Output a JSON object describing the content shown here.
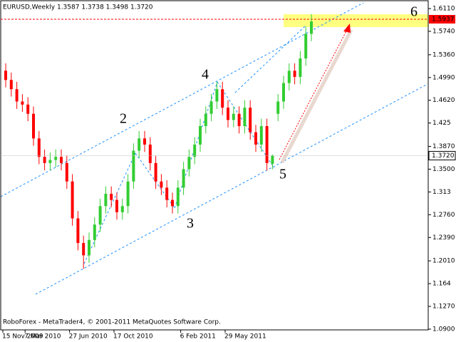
{
  "chart_data": {
    "type": "candlestick",
    "title": "EURUSD,Weekly  1.3587 1.3738 1.3498 1.3720",
    "footer": "RoboForex - MetaTrader4, © 2001-2011 MetaQuotes Software Corp.",
    "categories": [
      "15 Nov 2009",
      null,
      null,
      null,
      "7 Mar 2010",
      null,
      null,
      null,
      null,
      null,
      null,
      null,
      "27 Jun 2010",
      null,
      null,
      null,
      null,
      null,
      null,
      null,
      "17 Oct 2010",
      null,
      null,
      null,
      null,
      null,
      null,
      null,
      null,
      null,
      null,
      null,
      "6 Feb 2011",
      null,
      null,
      null,
      null,
      null,
      null,
      null,
      "29 May 2011",
      null,
      null,
      null,
      null,
      null,
      null,
      null,
      null,
      null,
      null,
      null,
      null,
      null,
      null,
      null
    ],
    "open": [
      1.51,
      1.495,
      1.48,
      1.46,
      1.455,
      1.44,
      1.4,
      1.37,
      1.36,
      1.365,
      1.37,
      1.36,
      1.33,
      1.27,
      1.23,
      1.21,
      1.235,
      1.26,
      1.29,
      1.31,
      1.3,
      1.28,
      1.29,
      1.33,
      1.38,
      1.4,
      1.39,
      1.36,
      1.33,
      1.32,
      1.3,
      1.29,
      1.32,
      1.35,
      1.37,
      1.39,
      1.42,
      1.44,
      1.46,
      1.48,
      1.45,
      1.43,
      1.44,
      1.42,
      1.45,
      1.41,
      1.39,
      1.42,
      1.3587,
      1.44,
      1.46,
      1.49,
      1.51,
      1.5,
      1.53,
      1.57
    ],
    "high": [
      1.522,
      1.507,
      1.492,
      1.472,
      1.467,
      1.452,
      1.412,
      1.382,
      1.377,
      1.382,
      1.382,
      1.372,
      1.342,
      1.282,
      1.242,
      1.247,
      1.272,
      1.302,
      1.322,
      1.322,
      1.312,
      1.302,
      1.342,
      1.392,
      1.412,
      1.412,
      1.402,
      1.372,
      1.342,
      1.332,
      1.312,
      1.332,
      1.362,
      1.382,
      1.402,
      1.432,
      1.452,
      1.472,
      1.492,
      1.492,
      1.462,
      1.452,
      1.452,
      1.462,
      1.462,
      1.422,
      1.432,
      1.432,
      1.3738,
      1.472,
      1.502,
      1.522,
      1.522,
      1.542,
      1.582,
      1.602
    ],
    "low": [
      1.483,
      1.468,
      1.448,
      1.443,
      1.428,
      1.388,
      1.358,
      1.348,
      1.348,
      1.353,
      1.348,
      1.318,
      1.258,
      1.218,
      1.188,
      1.198,
      1.223,
      1.248,
      1.278,
      1.288,
      1.268,
      1.268,
      1.278,
      1.318,
      1.368,
      1.378,
      1.348,
      1.318,
      1.308,
      1.288,
      1.278,
      1.278,
      1.308,
      1.338,
      1.358,
      1.378,
      1.408,
      1.428,
      1.448,
      1.438,
      1.418,
      1.418,
      1.408,
      1.408,
      1.398,
      1.378,
      1.378,
      1.348,
      1.3498,
      1.428,
      1.448,
      1.478,
      1.488,
      1.488,
      1.518,
      1.558
    ],
    "close": [
      1.495,
      1.48,
      1.46,
      1.455,
      1.44,
      1.4,
      1.37,
      1.36,
      1.365,
      1.37,
      1.36,
      1.33,
      1.27,
      1.23,
      1.21,
      1.235,
      1.26,
      1.29,
      1.31,
      1.3,
      1.28,
      1.29,
      1.33,
      1.38,
      1.4,
      1.39,
      1.36,
      1.33,
      1.32,
      1.3,
      1.29,
      1.32,
      1.35,
      1.37,
      1.39,
      1.42,
      1.44,
      1.46,
      1.48,
      1.45,
      1.43,
      1.44,
      1.42,
      1.45,
      1.41,
      1.39,
      1.42,
      1.36,
      1.372,
      1.46,
      1.49,
      1.51,
      1.5,
      1.53,
      1.57,
      1.59
    ],
    "up_color": "#32cd32",
    "down_color": "#ff0000",
    "ylim": [
      1.0888,
      1.6238
    ],
    "yticks": [
      {
        "value": 1.611,
        "label": "1.6110"
      },
      {
        "value": 1.574,
        "label": "1.5740"
      },
      {
        "value": 1.536,
        "label": "1.5360"
      },
      {
        "value": 1.499,
        "label": "1.4990"
      },
      {
        "value": 1.462,
        "label": "1.4620"
      },
      1.425,
      {
        "value": 1.387,
        "label": "1.3870"
      },
      {
        "value": 1.35,
        "label": "1.3500"
      },
      1.313,
      {
        "value": 1.276,
        "label": "1.2760"
      },
      {
        "value": 1.239,
        "label": "1.2390"
      },
      {
        "value": 1.201,
        "label": "1.2010"
      },
      1.164,
      {
        "value": 1.127,
        "label": "1.1270"
      },
      {
        "value": 1.09,
        "label": "1.0900"
      }
    ],
    "hline": {
      "value": 1.5937,
      "color": "#ff0000"
    },
    "last_price": {
      "value": 1.372,
      "label": "1.3720"
    },
    "annotations": [
      "2",
      "3",
      "4",
      "5",
      "6"
    ]
  }
}
